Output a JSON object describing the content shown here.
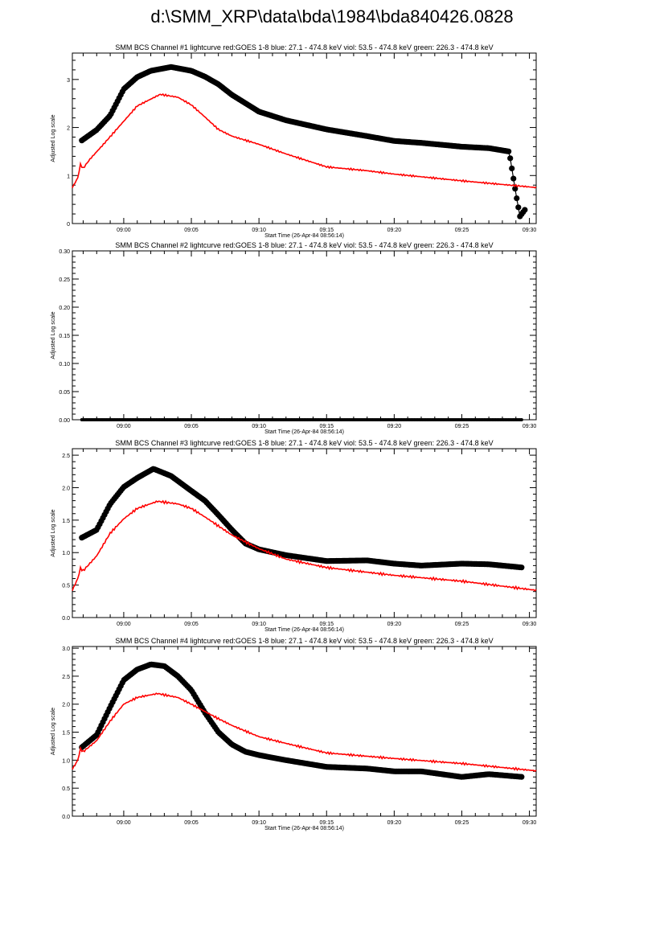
{
  "title": "d:\\SMM_XRP\\data\\bda\\1984\\bda840426.0828",
  "chart_data": [
    {
      "type": "scatter",
      "title": "SMM BCS Channel #1 lightcurve  red:GOES 1-8  blue: 27.1 - 474.8 keV  viol: 53.5 - 474.8 keV  green: 226.3 - 474.8 keV",
      "xlabel": "Start Time (26-Apr-84 08:56:14)",
      "ylabel": "Adjusted Log scale",
      "x_units": "minutes after 09:00",
      "xlim": [
        -3.8,
        30.5
      ],
      "ylim": [
        0,
        3.55
      ],
      "xticks": [
        "09:00",
        "09:05",
        "09:10",
        "09:15",
        "09:20",
        "09:25",
        "09:30"
      ],
      "yticks": [
        "0",
        "1",
        "2",
        "3"
      ],
      "ytick_values": [
        0,
        1,
        2,
        3
      ],
      "series": [
        {
          "name": "black",
          "color": "#000000",
          "x": [
            -3.1,
            -2,
            -1,
            0,
            1,
            2,
            3.5,
            5,
            6,
            7,
            8,
            10,
            12,
            15,
            18,
            20,
            22,
            25,
            27,
            28.5,
            29,
            29.3,
            29.7
          ],
          "y": [
            1.73,
            1.95,
            2.25,
            2.8,
            3.05,
            3.18,
            3.26,
            3.18,
            3.06,
            2.9,
            2.68,
            2.33,
            2.15,
            1.96,
            1.82,
            1.72,
            1.68,
            1.6,
            1.57,
            1.5,
            0.62,
            0.15,
            0.3
          ]
        },
        {
          "name": "red: GOES 1-8",
          "color": "#ff0000",
          "x": [
            -3.8,
            -3.4,
            -3.2,
            -3,
            -2.5,
            -1.5,
            0,
            1,
            2.7,
            4,
            5,
            6,
            7,
            8,
            10,
            12,
            15,
            18,
            20,
            25,
            30.5
          ],
          "y": [
            0.75,
            0.95,
            1.23,
            1.15,
            1.34,
            1.65,
            2.13,
            2.45,
            2.69,
            2.63,
            2.47,
            2.22,
            1.96,
            1.82,
            1.65,
            1.45,
            1.18,
            1.1,
            1.03,
            0.89,
            0.75
          ]
        }
      ]
    },
    {
      "type": "scatter",
      "title": "SMM BCS Channel #2 lightcurve  red:GOES 1-8  blue: 27.1 - 474.8 keV  viol: 53.5 - 474.8 keV  green: 226.3 - 474.8 keV",
      "xlabel": "Start Time (26-Apr-84 08:56:14)",
      "ylabel": "Adjusted Log scale",
      "x_units": "minutes after 09:00",
      "xlim": [
        -3.8,
        30.5
      ],
      "ylim": [
        0,
        0.3
      ],
      "xticks": [
        "09:00",
        "09:05",
        "09:10",
        "09:15",
        "09:20",
        "09:25",
        "09:30"
      ],
      "yticks": [
        "0.00",
        "0.05",
        "0.10",
        "0.15",
        "0.20",
        "0.25",
        "0.30"
      ],
      "ytick_values": [
        0,
        0.05,
        0.1,
        0.15,
        0.2,
        0.25,
        0.3
      ],
      "series": [
        {
          "name": "black",
          "color": "#000000",
          "x": [
            -3.1,
            29.5
          ],
          "y": [
            0,
            0
          ]
        }
      ]
    },
    {
      "type": "scatter",
      "title": "SMM BCS Channel #3 lightcurve  red:GOES 1-8  blue: 27.1 - 474.8 keV  viol: 53.5 - 474.8 keV  green: 226.3 - 474.8 keV",
      "xlabel": "Start Time (26-Apr-84 08:56:14)",
      "ylabel": "Adjusted Log scale",
      "x_units": "minutes after 09:00",
      "xlim": [
        -3.8,
        30.5
      ],
      "ylim": [
        0,
        2.6
      ],
      "xticks": [
        "09:00",
        "09:05",
        "09:10",
        "09:15",
        "09:20",
        "09:25",
        "09:30"
      ],
      "yticks": [
        "0.0",
        "0.5",
        "1.0",
        "1.5",
        "2.0",
        "2.5"
      ],
      "ytick_values": [
        0,
        0.5,
        1,
        1.5,
        2,
        2.5
      ],
      "series": [
        {
          "name": "black",
          "color": "#000000",
          "x": [
            -3.1,
            -2,
            -1,
            0,
            1,
            2.2,
            3.5,
            5,
            6,
            7,
            8,
            9,
            10,
            12,
            15,
            18,
            20,
            22,
            25,
            27,
            29.5
          ],
          "y": [
            1.23,
            1.35,
            1.75,
            2.01,
            2.15,
            2.29,
            2.18,
            1.95,
            1.8,
            1.58,
            1.35,
            1.14,
            1.05,
            0.96,
            0.87,
            0.88,
            0.83,
            0.8,
            0.83,
            0.82,
            0.77
          ]
        },
        {
          "name": "red: GOES 1-8",
          "color": "#ff0000",
          "x": [
            -3.8,
            -3.4,
            -3.2,
            -3,
            -2,
            -1,
            0,
            1,
            2.5,
            4,
            5,
            6,
            8,
            10,
            12,
            15,
            20,
            25,
            30.5
          ],
          "y": [
            0.42,
            0.6,
            0.76,
            0.72,
            0.95,
            1.3,
            1.52,
            1.68,
            1.79,
            1.75,
            1.68,
            1.55,
            1.27,
            1.06,
            0.9,
            0.77,
            0.65,
            0.56,
            0.42
          ]
        }
      ]
    },
    {
      "type": "scatter",
      "title": "SMM BCS Channel #4 lightcurve  red:GOES 1-8  blue: 27.1 - 474.8 keV  viol: 53.5 - 474.8 keV  green: 226.3 - 474.8 keV",
      "xlabel": "Start Time (26-Apr-84 08:56:14)",
      "ylabel": "Adjusted Log scale",
      "x_units": "minutes after 09:00",
      "xlim": [
        -3.8,
        30.5
      ],
      "ylim": [
        0,
        3.03
      ],
      "xticks": [
        "09:00",
        "09:05",
        "09:10",
        "09:15",
        "09:20",
        "09:25",
        "09:30"
      ],
      "yticks": [
        "0.0",
        "0.5",
        "1.0",
        "1.5",
        "2.0",
        "2.5",
        "3.0"
      ],
      "ytick_values": [
        0,
        0.5,
        1,
        1.5,
        2,
        2.5,
        3
      ],
      "series": [
        {
          "name": "black",
          "color": "#000000",
          "x": [
            -3.1,
            -2,
            -1,
            0,
            1,
            2,
            3,
            4,
            5,
            6,
            7,
            8,
            9,
            10,
            12,
            15,
            18,
            20,
            22,
            25,
            27,
            29.5
          ],
          "y": [
            1.23,
            1.45,
            1.95,
            2.43,
            2.62,
            2.71,
            2.68,
            2.5,
            2.25,
            1.85,
            1.5,
            1.28,
            1.15,
            1.09,
            1.0,
            0.88,
            0.85,
            0.8,
            0.8,
            0.7,
            0.75,
            0.7
          ]
        },
        {
          "name": "red: GOES 1-8",
          "color": "#ff0000",
          "x": [
            -3.8,
            -3.4,
            -3.2,
            -3,
            -2,
            -1,
            0,
            1,
            2.5,
            4,
            5,
            6,
            7,
            8,
            10,
            12,
            15,
            20,
            25,
            30.5
          ],
          "y": [
            0.84,
            1.0,
            1.2,
            1.15,
            1.35,
            1.7,
            2.0,
            2.12,
            2.19,
            2.12,
            2.0,
            1.87,
            1.74,
            1.62,
            1.42,
            1.3,
            1.13,
            1.03,
            0.94,
            0.81
          ]
        }
      ]
    }
  ]
}
